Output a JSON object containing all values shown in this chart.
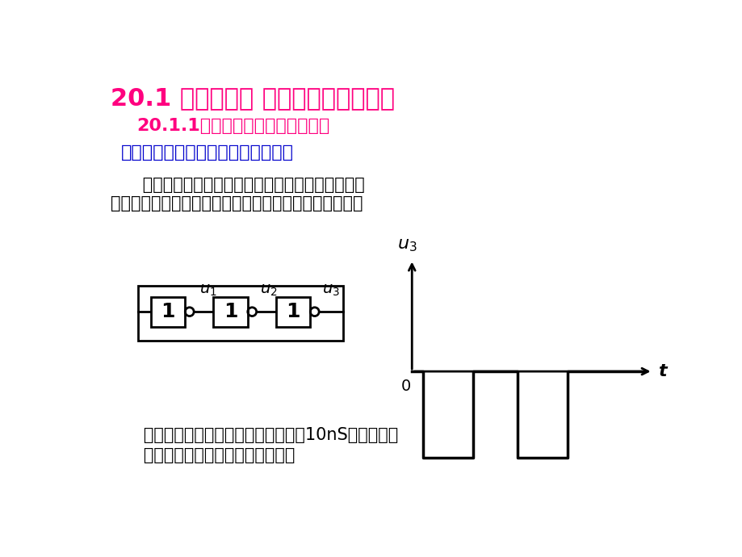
{
  "title": "20.1 多谐振荡器 （连续脉冲发生器）",
  "subtitle1": "20.1.1由门电路构成的多谐振荡器",
  "subtitle2": "一、由奇数个非门组成的多谐振荡器",
  "body_line1": "      利用门电路的传输延迟时间，将奇数个非门首尾相",
  "body_line2": "接，就可以构成一个简单的多谐振荡器（环行振荡器）：",
  "footer_line1": "   缺点：因门电路传输延迟时间很短（10nS左右），所",
  "footer_line2": "   以振荡频率太高，并且不可调整。",
  "bg_color": "#FFFFFF",
  "title_color": "#FF007F",
  "subtitle1_color": "#FF007F",
  "subtitle2_color": "#0000CC",
  "body_color": "#000000",
  "footer_color": "#000000",
  "diagram_color": "#000000",
  "waveform_color": "#000000"
}
